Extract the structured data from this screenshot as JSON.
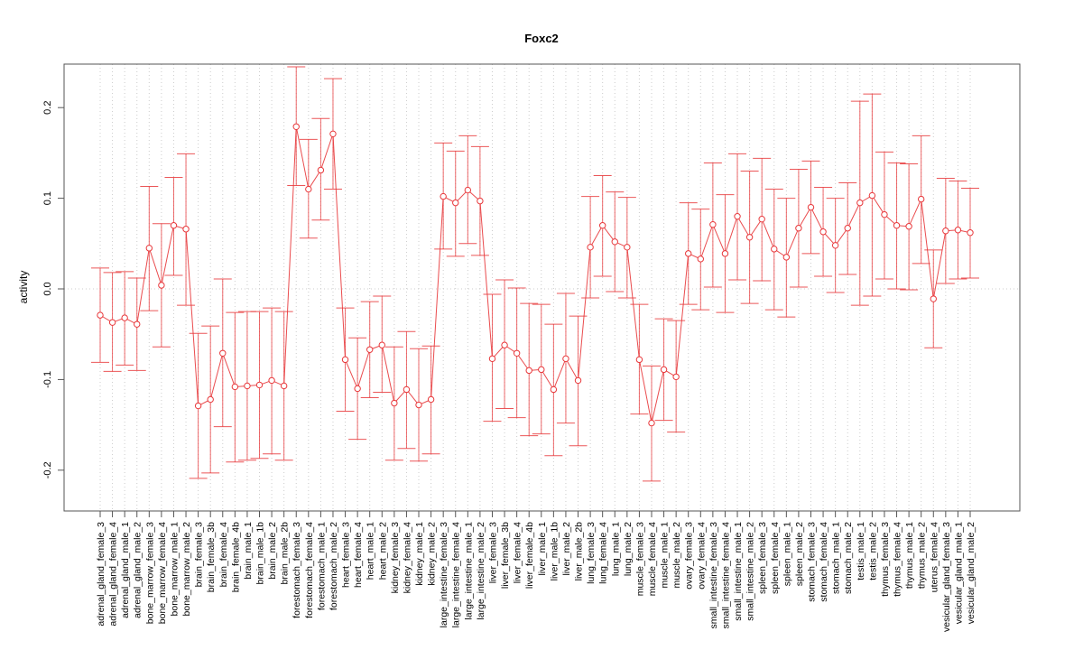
{
  "chart_data": {
    "type": "line",
    "subtype": "errorbar",
    "title": "Foxc2",
    "xlabel": "",
    "ylabel": "activity",
    "ylim": [
      -0.245,
      0.248
    ],
    "yticks": [
      -0.2,
      -0.1,
      0.0,
      0.1,
      0.2
    ],
    "ytick_labels": [
      "-0.2",
      "-0.1",
      "0.0",
      "0.1",
      "0.2"
    ],
    "grid": true,
    "legend": "none",
    "series_color": "#e8383b",
    "categories": [
      "adrenal_gland_female_3",
      "adrenal_gland_female_4",
      "adrenal_gland_male_1",
      "adrenal_gland_male_2",
      "bone_marrow_female_3",
      "bone_marrow_female_4",
      "bone_marrow_male_1",
      "bone_marrow_male_2",
      "brain_female_3",
      "brain_female_3b",
      "brain_female_4",
      "brain_female_4b",
      "brain_male_1",
      "brain_male_1b",
      "brain_male_2",
      "brain_male_2b",
      "forestomach_female_3",
      "forestomach_female_4",
      "forestomach_male_1",
      "forestomach_male_2",
      "heart_female_3",
      "heart_female_4",
      "heart_male_1",
      "heart_male_2",
      "kidney_female_3",
      "kidney_female_4",
      "kidney_male_1",
      "kidney_male_2",
      "large_intestine_female_3",
      "large_intestine_female_4",
      "large_intestine_male_1",
      "large_intestine_male_2",
      "liver_female_3",
      "liver_female_3b",
      "liver_female_4",
      "liver_female_4b",
      "liver_male_1",
      "liver_male_1b",
      "liver_male_2",
      "liver_male_2b",
      "lung_female_3",
      "lung_female_4",
      "lung_male_1",
      "lung_male_2",
      "muscle_female_3",
      "muscle_female_4",
      "muscle_male_1",
      "muscle_male_2",
      "ovary_female_3",
      "ovary_female_4",
      "small_intestine_female_3",
      "small_intestine_female_4",
      "small_intestine_male_1",
      "small_intestine_male_2",
      "spleen_female_3",
      "spleen_female_4",
      "spleen_male_1",
      "spleen_male_2",
      "stomach_female_3",
      "stomach_female_4",
      "stomach_male_1",
      "stomach_male_2",
      "testis_male_1",
      "testis_male_2",
      "thymus_female_3",
      "thymus_female_4",
      "thymus_male_1",
      "thymus_male_2",
      "uterus_female_4",
      "vesicular_gland_female_3",
      "vesicular_gland_male_1",
      "vesicular_gland_male_2"
    ],
    "values": [
      -0.029,
      -0.037,
      -0.032,
      -0.039,
      0.045,
      0.004,
      0.07,
      0.066,
      -0.129,
      -0.122,
      -0.071,
      -0.108,
      -0.107,
      -0.106,
      -0.101,
      -0.107,
      0.179,
      0.11,
      0.131,
      0.171,
      -0.078,
      -0.11,
      -0.067,
      -0.062,
      -0.126,
      -0.111,
      -0.128,
      -0.122,
      0.102,
      0.095,
      0.109,
      0.097,
      -0.077,
      -0.062,
      -0.071,
      -0.09,
      -0.089,
      -0.111,
      -0.077,
      -0.101,
      0.046,
      0.07,
      0.052,
      0.046,
      -0.078,
      -0.148,
      -0.089,
      -0.097,
      0.039,
      0.033,
      0.071,
      0.039,
      0.08,
      0.057,
      0.077,
      0.044,
      0.035,
      0.067,
      0.09,
      0.063,
      0.048,
      0.067,
      0.095,
      0.103,
      0.082,
      0.07,
      0.069,
      0.099,
      -0.011,
      0.064,
      0.065,
      0.062
    ],
    "upper": [
      0.023,
      0.018,
      0.019,
      0.012,
      0.113,
      0.072,
      0.123,
      0.149,
      -0.049,
      -0.041,
      0.011,
      -0.026,
      -0.025,
      -0.025,
      -0.021,
      -0.025,
      0.245,
      0.165,
      0.188,
      0.232,
      -0.021,
      -0.054,
      -0.014,
      -0.008,
      -0.064,
      -0.047,
      -0.066,
      -0.063,
      0.161,
      0.152,
      0.169,
      0.157,
      -0.006,
      0.01,
      0.001,
      -0.016,
      -0.017,
      -0.039,
      -0.005,
      -0.03,
      0.102,
      0.125,
      0.107,
      0.101,
      -0.017,
      -0.085,
      -0.033,
      -0.035,
      0.095,
      0.088,
      0.139,
      0.104,
      0.149,
      0.13,
      0.144,
      0.11,
      0.1,
      0.132,
      0.141,
      0.112,
      0.1,
      0.117,
      0.207,
      0.215,
      0.151,
      0.139,
      0.138,
      0.169,
      0.043,
      0.122,
      0.119,
      0.111
    ],
    "lower": [
      -0.081,
      -0.091,
      -0.084,
      -0.09,
      -0.024,
      -0.064,
      0.015,
      -0.018,
      -0.209,
      -0.203,
      -0.152,
      -0.191,
      -0.189,
      -0.187,
      -0.182,
      -0.189,
      0.114,
      0.056,
      0.076,
      0.11,
      -0.135,
      -0.166,
      -0.12,
      -0.114,
      -0.189,
      -0.176,
      -0.19,
      -0.182,
      0.044,
      0.036,
      0.05,
      0.037,
      -0.146,
      -0.132,
      -0.142,
      -0.162,
      -0.16,
      -0.184,
      -0.148,
      -0.173,
      -0.01,
      0.014,
      -0.003,
      -0.01,
      -0.138,
      -0.212,
      -0.145,
      -0.158,
      -0.017,
      -0.023,
      0.002,
      -0.026,
      0.01,
      -0.016,
      0.009,
      -0.023,
      -0.031,
      0.002,
      0.039,
      0.014,
      -0.004,
      0.016,
      -0.018,
      -0.008,
      0.011,
      0.0,
      -0.001,
      0.028,
      -0.065,
      0.006,
      0.011,
      0.012
    ]
  }
}
